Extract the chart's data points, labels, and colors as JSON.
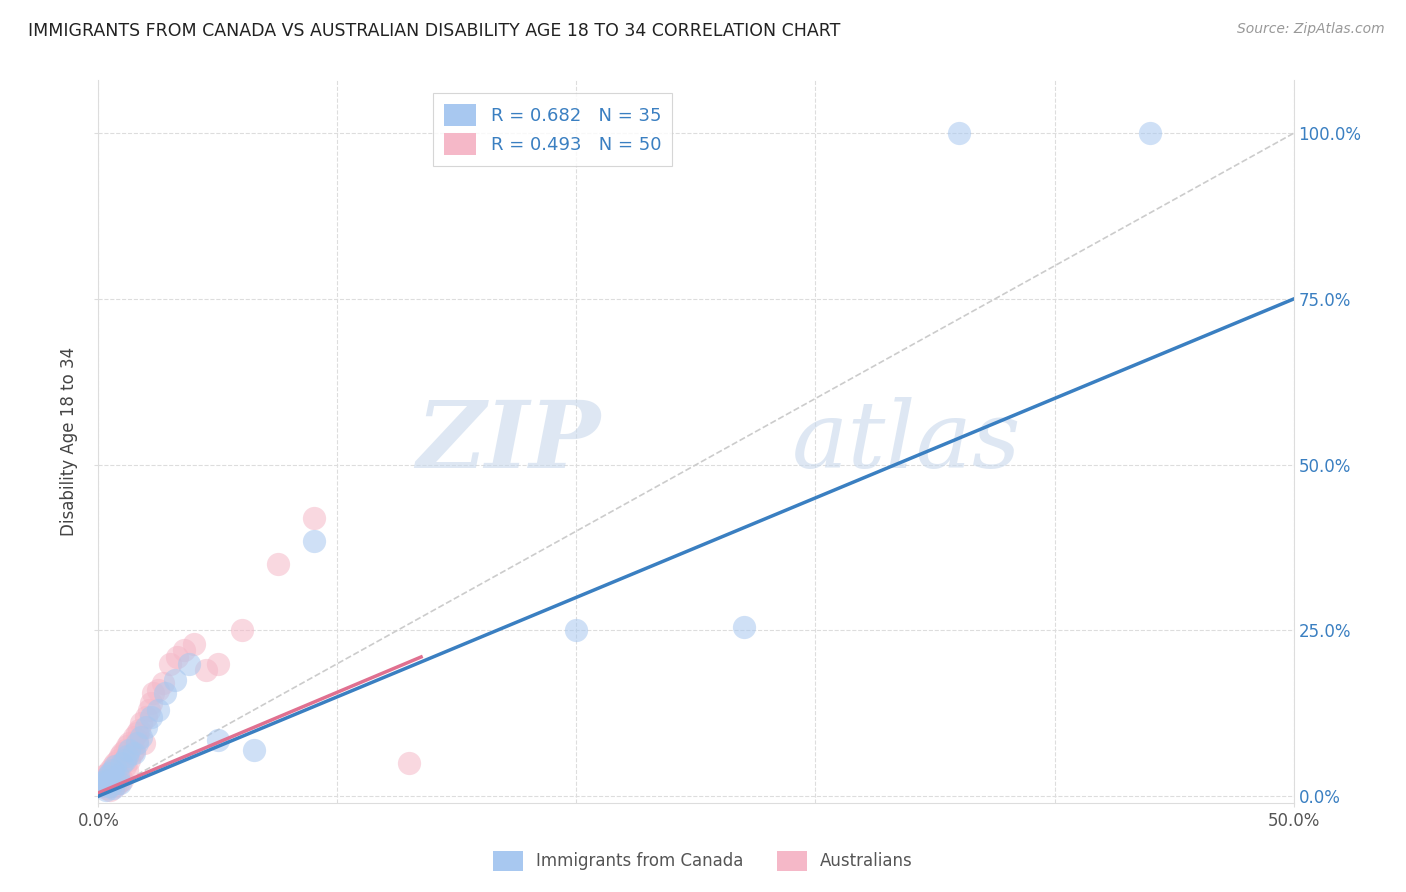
{
  "title": "IMMIGRANTS FROM CANADA VS AUSTRALIAN DISABILITY AGE 18 TO 34 CORRELATION CHART",
  "source": "Source: ZipAtlas.com",
  "ylabel": "Disability Age 18 to 34",
  "xlim": [
    0.0,
    0.5
  ],
  "ylim": [
    -0.01,
    1.08
  ],
  "xtick_positions": [
    0.0,
    0.5
  ],
  "xtick_labels": [
    "0.0%",
    "50.0%"
  ],
  "ytick_positions": [
    0.0,
    0.25,
    0.5,
    0.75,
    1.0
  ],
  "ytick_labels": [
    "0.0%",
    "25.0%",
    "50.0%",
    "75.0%",
    "100.0%"
  ],
  "background_color": "#ffffff",
  "watermark_zip": "ZIP",
  "watermark_atlas": "atlas",
  "legend_R1": "R = 0.682",
  "legend_N1": "N = 35",
  "legend_R2": "R = 0.493",
  "legend_N2": "N = 50",
  "series1_color": "#a8c8f0",
  "series2_color": "#f5b8c8",
  "line1_color": "#3a7fc1",
  "line2_color": "#e07090",
  "ref_line_color": "#cccccc",
  "grid_color": "#dddddd",
  "axis_label_color": "#3a7fc1",
  "series1_label": "Immigrants from Canada",
  "series2_label": "Australians",
  "blue_line_x": [
    0.0,
    0.5
  ],
  "blue_line_y": [
    0.0,
    0.75
  ],
  "pink_line_x": [
    0.0,
    0.135
  ],
  "pink_line_y": [
    0.005,
    0.21
  ],
  "ref_line_x": [
    0.0,
    0.5
  ],
  "ref_line_y": [
    0.0,
    1.0
  ],
  "canada_x": [
    0.001,
    0.002,
    0.002,
    0.003,
    0.003,
    0.004,
    0.004,
    0.005,
    0.005,
    0.006,
    0.006,
    0.007,
    0.007,
    0.008,
    0.009,
    0.01,
    0.011,
    0.012,
    0.013,
    0.015,
    0.016,
    0.018,
    0.02,
    0.022,
    0.025,
    0.028,
    0.032,
    0.038,
    0.05,
    0.065,
    0.09,
    0.2,
    0.27,
    0.36,
    0.44
  ],
  "canada_y": [
    0.015,
    0.018,
    0.022,
    0.01,
    0.025,
    0.02,
    0.03,
    0.015,
    0.035,
    0.012,
    0.04,
    0.025,
    0.045,
    0.03,
    0.02,
    0.05,
    0.055,
    0.06,
    0.07,
    0.065,
    0.08,
    0.09,
    0.105,
    0.12,
    0.13,
    0.155,
    0.175,
    0.2,
    0.085,
    0.07,
    0.385,
    0.25,
    0.255,
    1.0,
    1.0
  ],
  "aus_x": [
    0.001,
    0.001,
    0.002,
    0.002,
    0.003,
    0.003,
    0.004,
    0.004,
    0.005,
    0.005,
    0.006,
    0.006,
    0.007,
    0.007,
    0.008,
    0.008,
    0.009,
    0.009,
    0.01,
    0.01,
    0.011,
    0.011,
    0.012,
    0.012,
    0.013,
    0.013,
    0.014,
    0.015,
    0.015,
    0.016,
    0.016,
    0.017,
    0.018,
    0.019,
    0.02,
    0.021,
    0.022,
    0.023,
    0.025,
    0.027,
    0.03,
    0.033,
    0.036,
    0.04,
    0.045,
    0.05,
    0.06,
    0.075,
    0.09,
    0.13
  ],
  "aus_y": [
    0.018,
    0.025,
    0.015,
    0.03,
    0.012,
    0.022,
    0.02,
    0.035,
    0.01,
    0.04,
    0.025,
    0.045,
    0.015,
    0.05,
    0.02,
    0.055,
    0.03,
    0.06,
    0.025,
    0.065,
    0.045,
    0.07,
    0.04,
    0.075,
    0.055,
    0.08,
    0.065,
    0.07,
    0.09,
    0.085,
    0.095,
    0.1,
    0.11,
    0.08,
    0.12,
    0.13,
    0.14,
    0.155,
    0.16,
    0.17,
    0.2,
    0.21,
    0.22,
    0.23,
    0.19,
    0.2,
    0.25,
    0.35,
    0.42,
    0.05
  ]
}
